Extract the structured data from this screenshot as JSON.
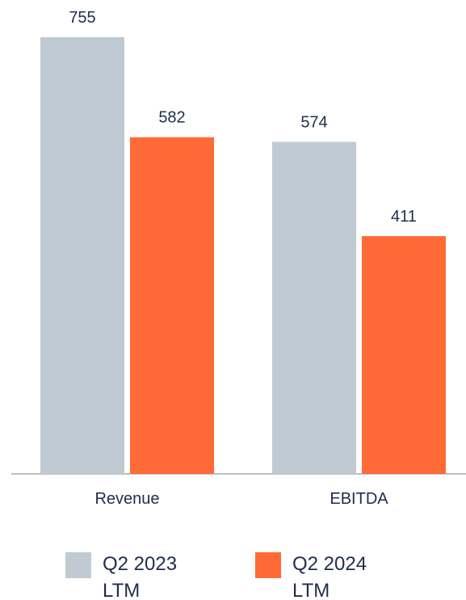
{
  "chart_data": {
    "type": "bar",
    "categories": [
      "Revenue",
      "EBITDA"
    ],
    "series": [
      {
        "name": "Q2 2023 LTM",
        "color": "#bfcad2",
        "values": [
          755,
          574
        ]
      },
      {
        "name": "Q2 2024 LTM",
        "color": "#ff6a36",
        "values": [
          582,
          411
        ]
      }
    ]
  }
}
